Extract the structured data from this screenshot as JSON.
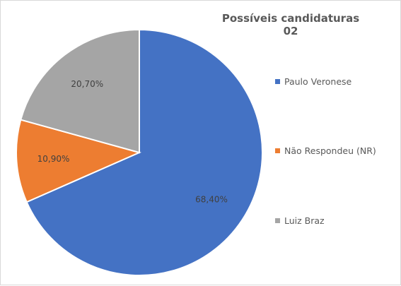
{
  "chart_data": {
    "type": "pie",
    "title": "Possíveis candidaturas 02",
    "slices": [
      {
        "label": "Paulo Veronese",
        "value": 68.4,
        "display": "68,40%",
        "color": "#4472c4"
      },
      {
        "label": "Não Respondeu (NR)",
        "value": 10.9,
        "display": "10,90%",
        "color": "#ed7d31"
      },
      {
        "label": "Luiz Braz",
        "value": 20.7,
        "display": "20,70%",
        "color": "#a5a5a5"
      }
    ],
    "legend_position": "right"
  }
}
